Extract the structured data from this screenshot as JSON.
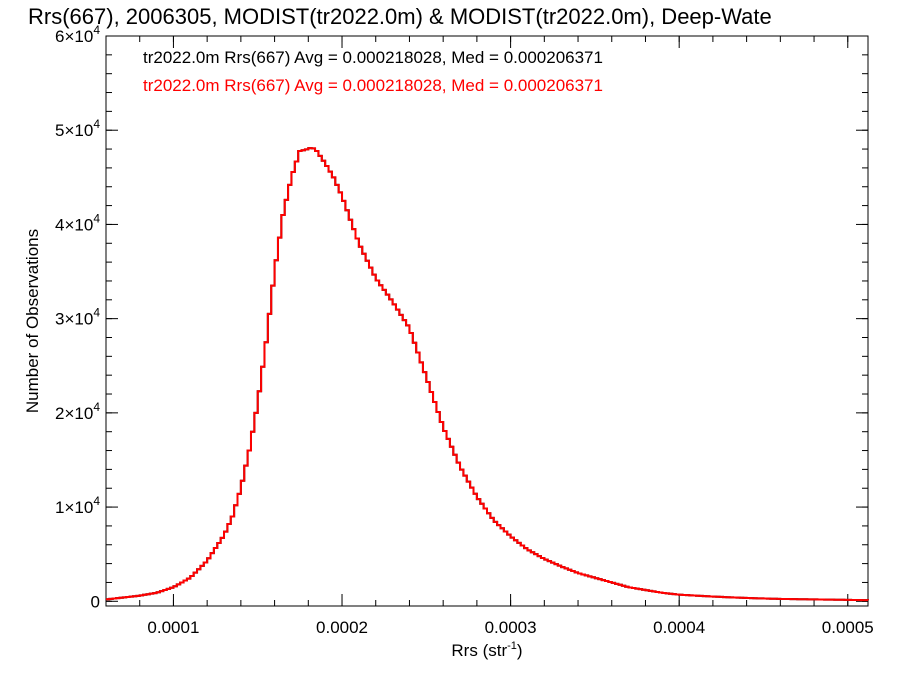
{
  "chart_data": {
    "type": "line",
    "title": "Rrs(667), 2006305, MODIST(tr2022.0m) & MODIST(tr2022.0m), Deep-Wate",
    "xlabel": "Rrs (str",
    "xlabel_sup": "-1",
    "xlabel_close": ")",
    "ylabel": "Number of Observations",
    "xlim": [
      6e-05,
      0.000512
    ],
    "ylim": [
      -500,
      60000
    ],
    "x_ticks": [
      {
        "value": 0.0001,
        "label": "0.0001"
      },
      {
        "value": 0.0002,
        "label": "0.0002"
      },
      {
        "value": 0.0003,
        "label": "0.0003"
      },
      {
        "value": 0.0004,
        "label": "0.0004"
      },
      {
        "value": 0.0005,
        "label": "0.0005"
      }
    ],
    "y_ticks": [
      {
        "value": 0,
        "mantissa": "0",
        "exp": ""
      },
      {
        "value": 10000,
        "mantissa": "1×10",
        "exp": "4"
      },
      {
        "value": 20000,
        "mantissa": "2×10",
        "exp": "4"
      },
      {
        "value": 30000,
        "mantissa": "3×10",
        "exp": "4"
      },
      {
        "value": 40000,
        "mantissa": "4×10",
        "exp": "4"
      },
      {
        "value": 50000,
        "mantissa": "5×10",
        "exp": "4"
      },
      {
        "value": 60000,
        "mantissa": "6×10",
        "exp": "4"
      }
    ],
    "grid": false,
    "legend_position": "top-left",
    "annotations": [
      {
        "text": "tr2022.0m Rrs(667) Avg = 0.000218028, Med = 0.000206371",
        "color": "#000000"
      },
      {
        "text": "tr2022.0m Rrs(667) Avg = 0.000218028, Med = 0.000206371",
        "color": "#ff0000"
      }
    ],
    "series": [
      {
        "color": "#000000",
        "x": [
          6e-05,
          7e-05,
          8e-05,
          9e-05,
          0.0001,
          0.00011,
          0.00012,
          0.00013,
          0.000135,
          0.00014,
          0.000145,
          0.00015,
          0.000155,
          0.00016,
          0.000165,
          0.00017,
          0.000175,
          0.00018,
          0.000182,
          0.000185,
          0.00019,
          0.000195,
          0.0002,
          0.00021,
          0.00022,
          0.00023,
          0.00024,
          0.00025,
          0.00026,
          0.00027,
          0.00028,
          0.00029,
          0.0003,
          0.00031,
          0.00032,
          0.00033,
          0.00034,
          0.00035,
          0.00036,
          0.00037,
          0.00038,
          0.00039,
          0.0004,
          0.00042,
          0.00044,
          0.00046,
          0.00048,
          0.0005,
          0.000512
        ],
        "y": [
          200,
          400,
          600,
          900,
          1500,
          2500,
          4300,
          7000,
          9000,
          12000,
          16000,
          21000,
          27500,
          35000,
          41000,
          45000,
          47800,
          48000,
          48200,
          47800,
          46500,
          45000,
          43000,
          38000,
          34300,
          31800,
          29000,
          23800,
          18500,
          14300,
          11100,
          8600,
          6900,
          5500,
          4500,
          3700,
          3000,
          2500,
          2000,
          1500,
          1200,
          900,
          700,
          500,
          350,
          250,
          200,
          150,
          120
        ]
      },
      {
        "color": "#ff0000",
        "x": [
          6e-05,
          7e-05,
          8e-05,
          9e-05,
          0.0001,
          0.00011,
          0.00012,
          0.00013,
          0.000135,
          0.00014,
          0.000145,
          0.00015,
          0.000155,
          0.00016,
          0.000165,
          0.00017,
          0.000175,
          0.00018,
          0.000182,
          0.000185,
          0.00019,
          0.000195,
          0.0002,
          0.00021,
          0.00022,
          0.00023,
          0.00024,
          0.00025,
          0.00026,
          0.00027,
          0.00028,
          0.00029,
          0.0003,
          0.00031,
          0.00032,
          0.00033,
          0.00034,
          0.00035,
          0.00036,
          0.00037,
          0.00038,
          0.00039,
          0.0004,
          0.00042,
          0.00044,
          0.00046,
          0.00048,
          0.0005,
          0.000512
        ],
        "y": [
          200,
          400,
          600,
          900,
          1500,
          2500,
          4300,
          7000,
          9000,
          12000,
          16000,
          21000,
          27500,
          35000,
          41000,
          45000,
          47800,
          48000,
          48200,
          47800,
          46500,
          45000,
          43000,
          38000,
          34300,
          31800,
          29000,
          23800,
          18500,
          14300,
          11100,
          8600,
          6900,
          5500,
          4500,
          3700,
          3000,
          2500,
          2000,
          1500,
          1200,
          900,
          700,
          500,
          350,
          250,
          200,
          150,
          120
        ]
      }
    ]
  }
}
